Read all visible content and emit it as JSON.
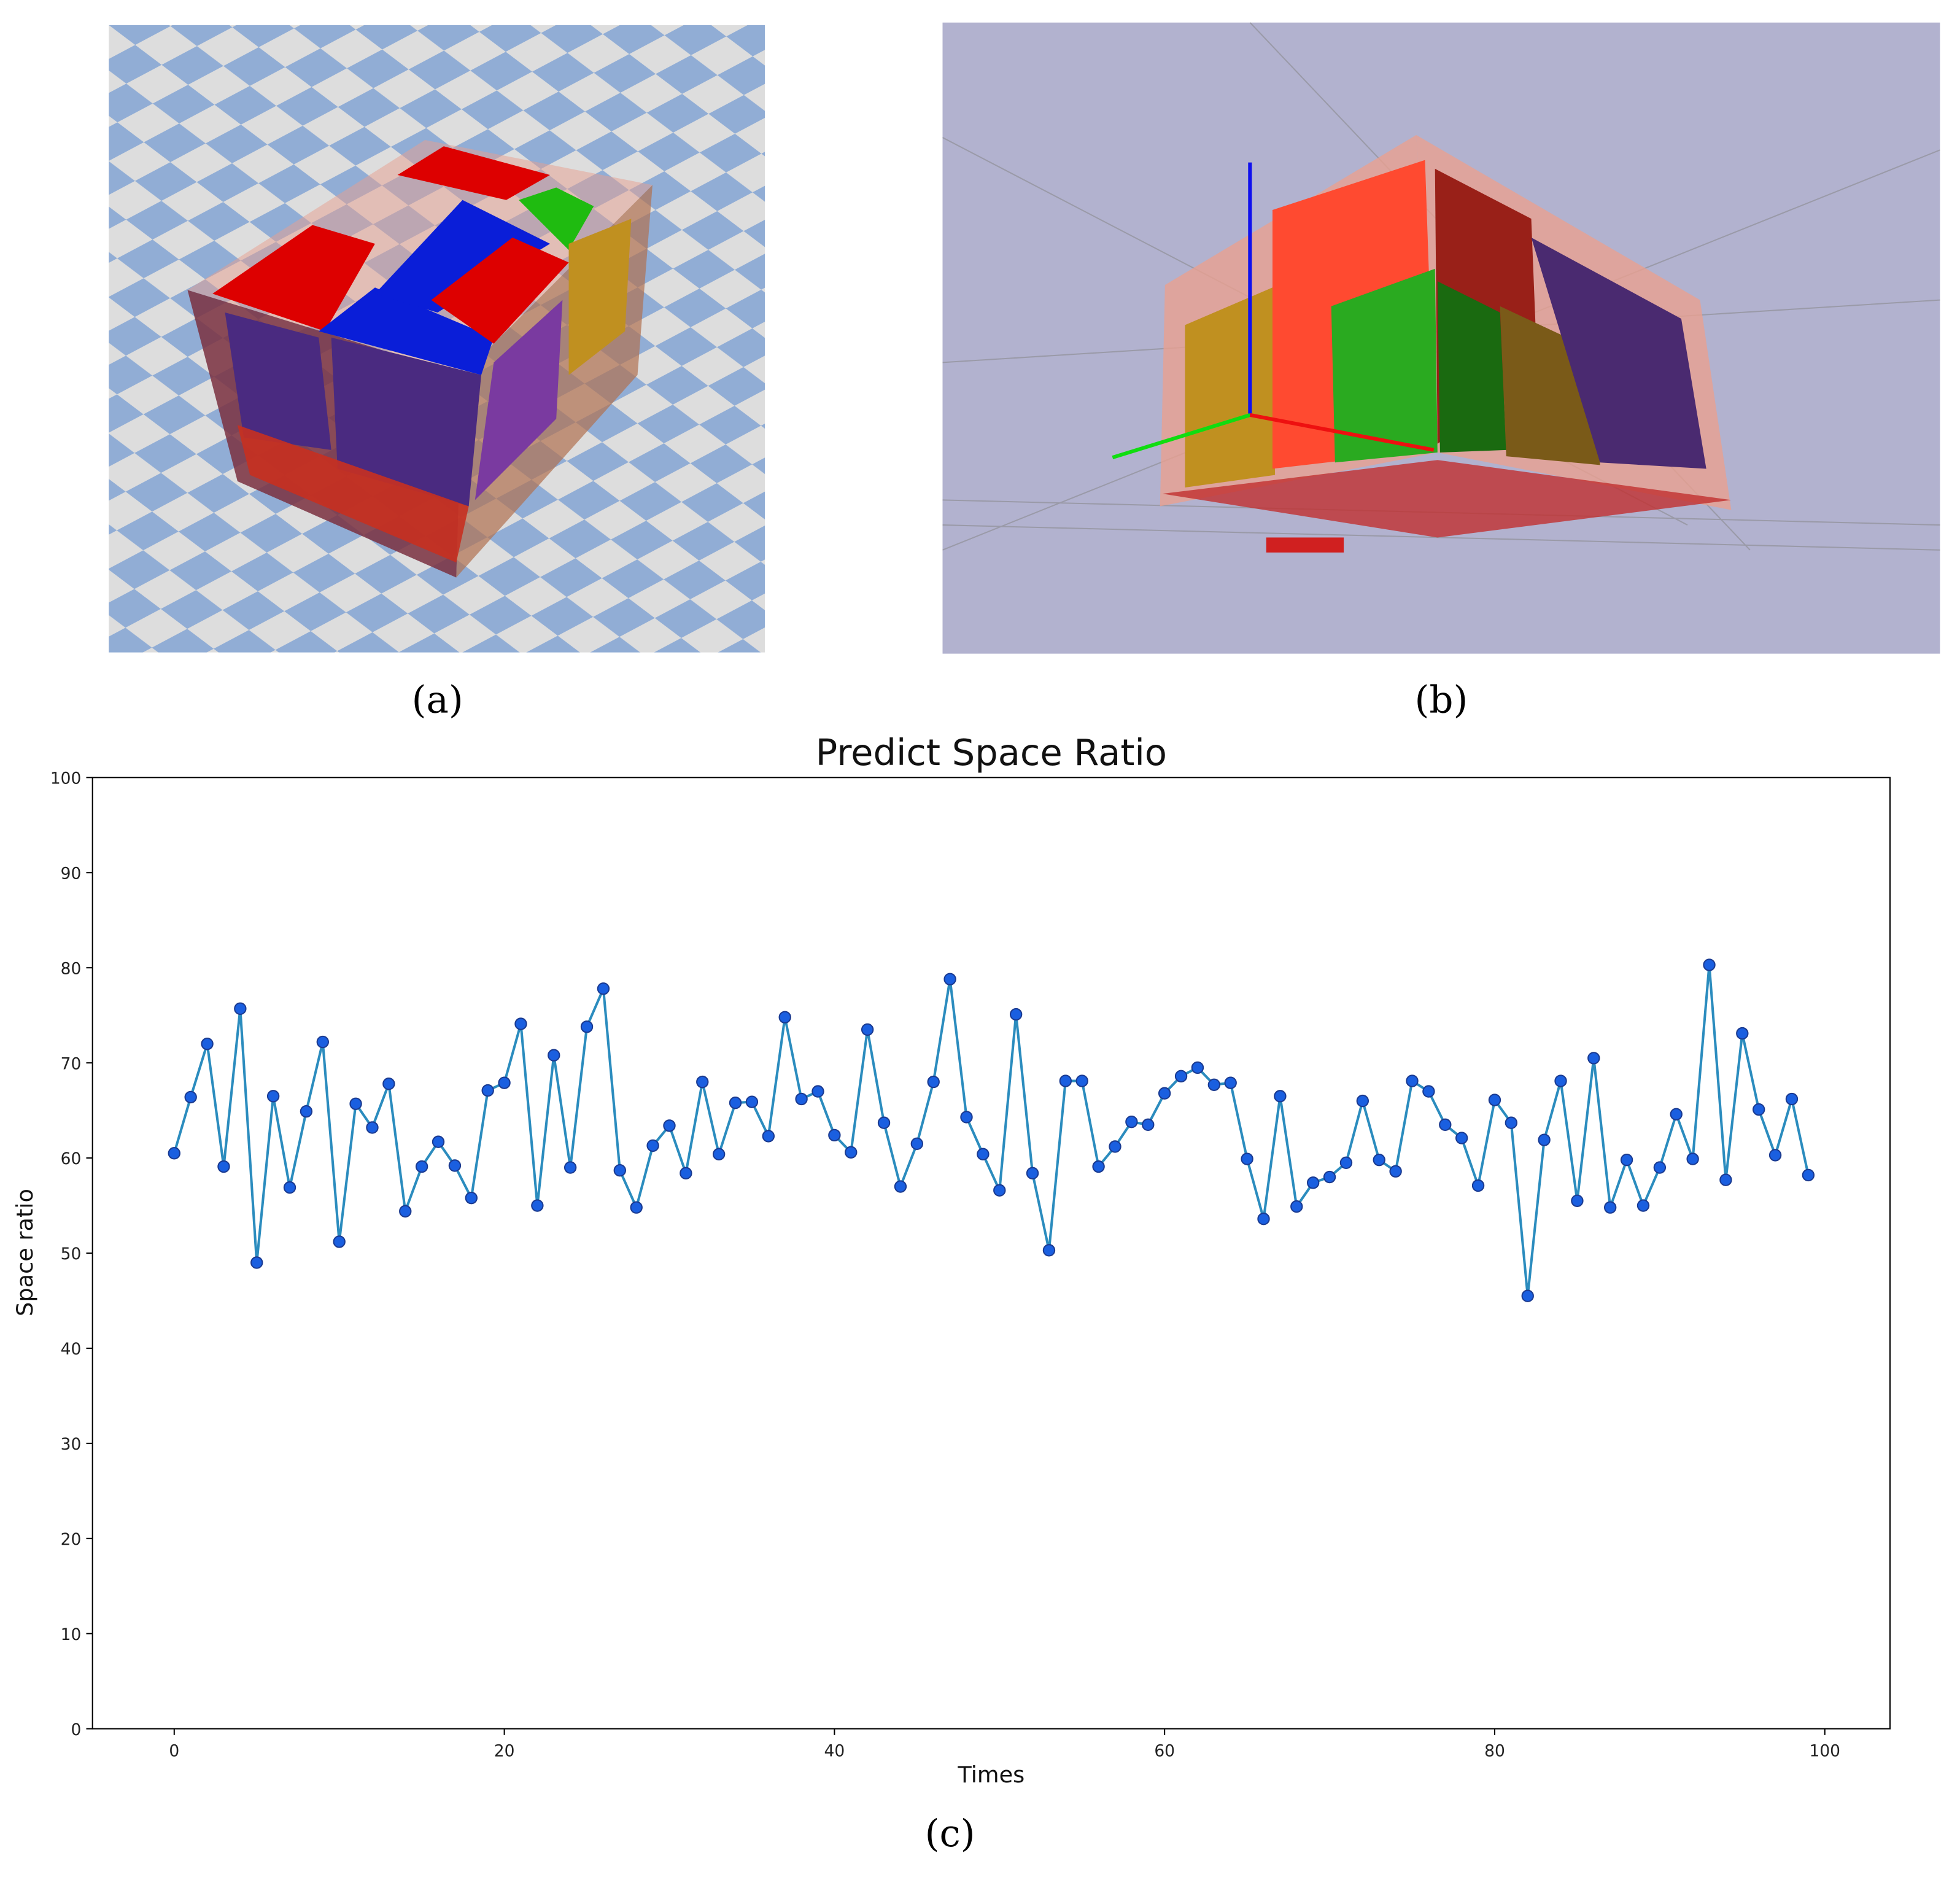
{
  "panel_labels": [
    "(a)",
    "(b)",
    "(c)"
  ],
  "chart_data": {
    "type": "line",
    "title": "Predict Space Ratio",
    "x_label": "Times",
    "y_label": "Space ratio",
    "x": [
      0,
      1,
      2,
      3,
      4,
      5,
      6,
      7,
      8,
      9,
      10,
      11,
      12,
      13,
      14,
      15,
      16,
      17,
      18,
      19,
      20,
      21,
      22,
      23,
      24,
      25,
      26,
      27,
      28,
      29,
      30,
      31,
      32,
      33,
      34,
      35,
      36,
      37,
      38,
      39,
      40,
      41,
      42,
      43,
      44,
      45,
      46,
      47,
      48,
      49,
      50,
      51,
      52,
      53,
      54,
      55,
      56,
      57,
      58,
      59,
      60,
      61,
      62,
      63,
      64,
      65,
      66,
      67,
      68,
      69,
      70,
      71,
      72,
      73,
      74,
      75,
      76,
      77,
      78,
      79,
      80,
      81,
      82,
      83,
      84,
      85,
      86,
      87,
      88,
      89,
      90,
      91,
      92,
      93,
      94,
      95,
      96,
      97,
      98,
      99
    ],
    "values": [
      60.5,
      66.4,
      72,
      59.1,
      75.7,
      49,
      66.5,
      56.9,
      64.9,
      72.2,
      51.2,
      65.7,
      63.2,
      67.8,
      54.4,
      59.1,
      61.7,
      59.2,
      55.8,
      67.1,
      67.9,
      74.1,
      55,
      70.8,
      59,
      73.8,
      77.8,
      58.7,
      54.8,
      61.3,
      63.4,
      58.4,
      68,
      60.4,
      65.8,
      65.9,
      62.3,
      74.8,
      66.2,
      67,
      62.4,
      60.6,
      73.5,
      63.7,
      57,
      61.5,
      68,
      78.8,
      64.3,
      60.4,
      56.6,
      75.1,
      58.4,
      50.3,
      68.1,
      68.1,
      59.1,
      61.2,
      63.8,
      63.5,
      66.8,
      68.6,
      69.5,
      67.7,
      67.9,
      59.9,
      53.6,
      66.5,
      54.9,
      57.4,
      58,
      59.5,
      66,
      59.8,
      58.6,
      68.1,
      67,
      63.5,
      62.1,
      57.1,
      66.1,
      63.7,
      45.5,
      61.9,
      68.1,
      55.5,
      70.5,
      54.8,
      59.8,
      55,
      59,
      64.6,
      59.9,
      80.3,
      57.7,
      73.1,
      65.1,
      60.3,
      66.2,
      58.2
    ],
    "color": "#2b8cbe",
    "marker_color": "#1a5fe0",
    "xlim": [
      -4.95,
      103.95
    ],
    "ylim": [
      0,
      100
    ],
    "xticks": [
      0,
      20,
      40,
      60,
      80,
      100
    ],
    "yticks": [
      0,
      10,
      20,
      30,
      40,
      50,
      60,
      70,
      80,
      90,
      100
    ],
    "grid": false
  }
}
